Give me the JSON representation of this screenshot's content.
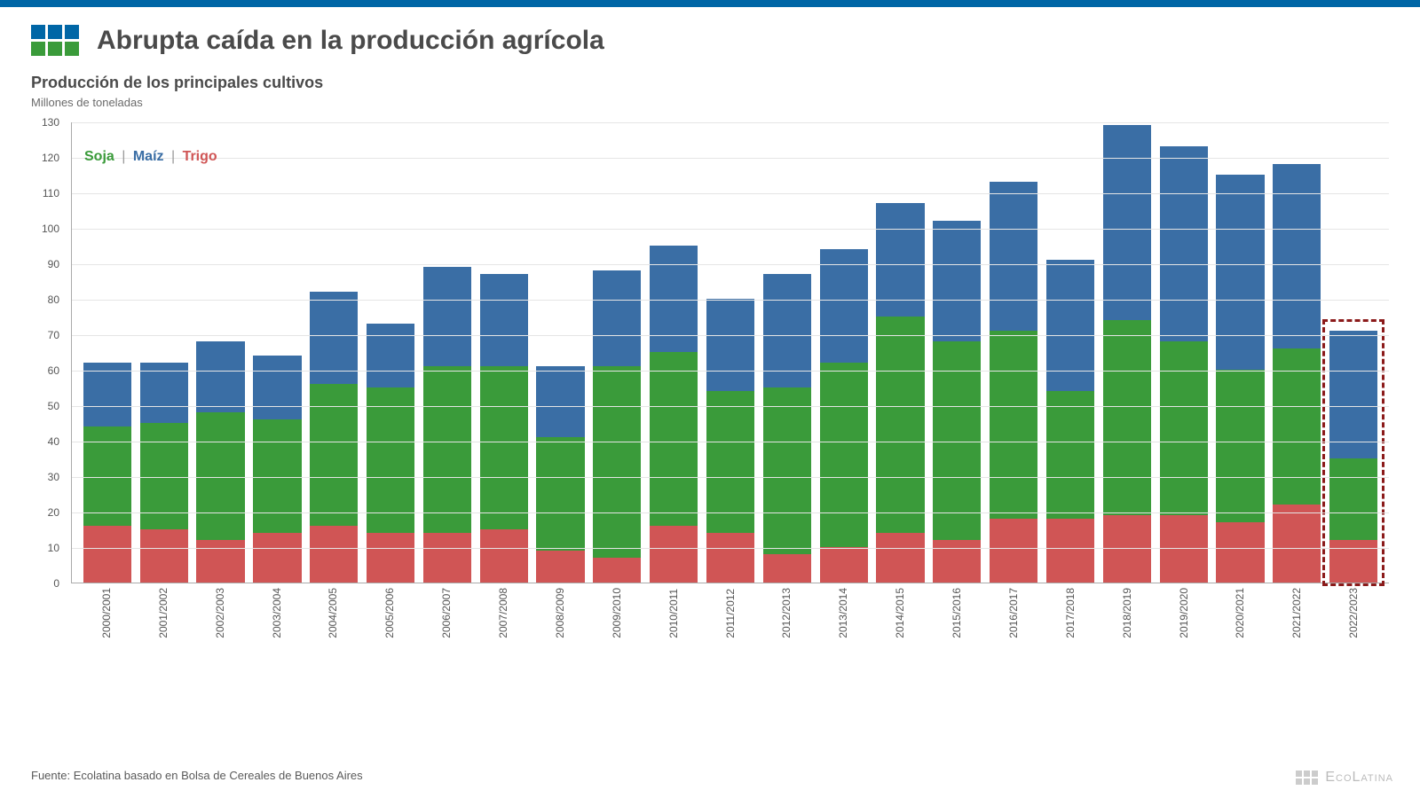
{
  "header": {
    "title": "Abrupta caída en la producción agrícola",
    "subtitle": "Producción de los principales cultivos",
    "unit": "Millones de toneladas",
    "logo_colors": [
      "#0066a6",
      "#0066a6",
      "#0066a6",
      "#3a9b3a",
      "#3a9b3a",
      "#3a9b3a"
    ]
  },
  "legend": {
    "items": [
      {
        "label": "Soja",
        "color": "#3a9b3a"
      },
      {
        "label": "Maíz",
        "color": "#3a6ea5"
      },
      {
        "label": "Trigo",
        "color": "#d05555"
      }
    ],
    "separator": "|"
  },
  "chart": {
    "type": "stacked-bar",
    "ylim": [
      0,
      130
    ],
    "ytick_step": 10,
    "grid_color": "#e5e5e5",
    "axis_color": "#aaaaaa",
    "background": "#ffffff",
    "bar_width_ratio": 0.85,
    "colors": {
      "trigo": "#d05555",
      "soja": "#3a9b3a",
      "maiz": "#3a6ea5"
    },
    "categories": [
      "2000/2001",
      "2001/2002",
      "2002/2003",
      "2003/2004",
      "2004/2005",
      "2005/2006",
      "2006/2007",
      "2007/2008",
      "2008/2009",
      "2009/2010",
      "2010/2011",
      "2011/2012",
      "2012/2013",
      "2013/2014",
      "2014/2015",
      "2015/2016",
      "2016/2017",
      "2017/2018",
      "2018/2019",
      "2019/2020",
      "2020/2021",
      "2021/2022",
      "2022/2023"
    ],
    "series": {
      "trigo": [
        16,
        15,
        12,
        14,
        16,
        14,
        14,
        15,
        9,
        7,
        16,
        14,
        8,
        10,
        14,
        12,
        18,
        18,
        19,
        19,
        17,
        22,
        12
      ],
      "soja": [
        28,
        30,
        36,
        32,
        40,
        41,
        47,
        46,
        32,
        54,
        49,
        40,
        47,
        52,
        61,
        56,
        53,
        36,
        55,
        49,
        43,
        44,
        23
      ],
      "maiz": [
        18,
        17,
        20,
        18,
        26,
        18,
        28,
        26,
        20,
        27,
        30,
        26,
        32,
        32,
        32,
        34,
        42,
        37,
        55,
        55,
        55,
        52,
        36
      ]
    },
    "highlight_index": 22,
    "highlight_border_color": "#8b1a1a"
  },
  "footer": {
    "source": "Fuente: Ecolatina basado en Bolsa de Cereales de Buenos Aires",
    "brand": "EcoLatina"
  }
}
